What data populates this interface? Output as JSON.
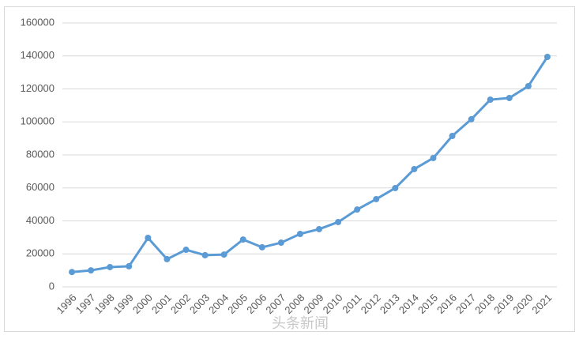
{
  "chart_data": {
    "type": "line",
    "categories": [
      "1996",
      "1997",
      "1998",
      "1999",
      "2000",
      "2001",
      "2002",
      "2003",
      "2004",
      "2005",
      "2006",
      "2007",
      "2008",
      "2009",
      "2010",
      "2011",
      "2012",
      "2013",
      "2014",
      "2015",
      "2016",
      "2017",
      "2018",
      "2019",
      "2020",
      "2021"
    ],
    "values": [
      9000,
      10000,
      12000,
      12500,
      29700,
      16800,
      22500,
      19200,
      19600,
      28700,
      24000,
      26800,
      32100,
      35000,
      39300,
      46900,
      53200,
      59900,
      71400,
      78100,
      91500,
      101600,
      113500,
      114500,
      121700,
      139400
    ],
    "color": "#5b9bd5",
    "ylim": [
      0,
      160000
    ],
    "yticks": [
      0,
      20000,
      40000,
      60000,
      80000,
      100000,
      120000,
      140000,
      160000
    ],
    "grid": true,
    "watermark": "头条新闻"
  }
}
